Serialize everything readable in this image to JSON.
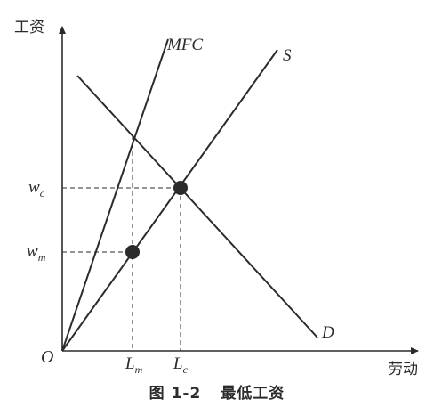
{
  "axes": {
    "y_label": "工资",
    "x_label": "劳动",
    "origin": "O"
  },
  "curves": {
    "mfc": "MFC",
    "supply": "S",
    "demand": "D"
  },
  "ticks": {
    "wc": {
      "base": "w",
      "sub": "c"
    },
    "wm": {
      "base": "w",
      "sub": "m"
    },
    "lm": {
      "base": "L",
      "sub": "m"
    },
    "lc": {
      "base": "L",
      "sub": "c"
    }
  },
  "caption": {
    "number": "图 1-2",
    "title": "最低工资"
  },
  "colors": {
    "ink": "#2b2b2b"
  }
}
